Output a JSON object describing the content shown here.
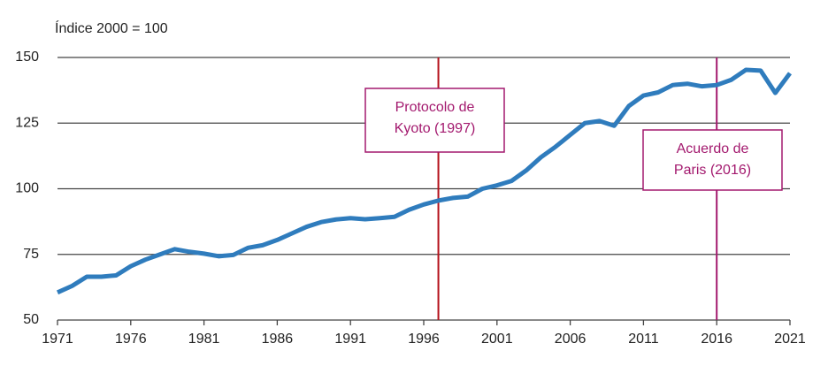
{
  "chart_data": {
    "type": "line",
    "y_label": "Índice 2000 = 100",
    "x": [
      1971,
      1972,
      1973,
      1974,
      1975,
      1976,
      1977,
      1978,
      1979,
      1980,
      1981,
      1982,
      1983,
      1984,
      1985,
      1986,
      1987,
      1988,
      1989,
      1990,
      1991,
      1992,
      1993,
      1994,
      1995,
      1996,
      1997,
      1998,
      1999,
      2000,
      2001,
      2002,
      2003,
      2004,
      2005,
      2006,
      2007,
      2008,
      2009,
      2010,
      2011,
      2012,
      2013,
      2014,
      2015,
      2016,
      2017,
      2018,
      2019,
      2020,
      2021
    ],
    "values": [
      60.5,
      63,
      66.5,
      66.5,
      67,
      70.5,
      73,
      75,
      77,
      76,
      75.3,
      74.3,
      74.8,
      77.5,
      78.5,
      80.5,
      83,
      85.5,
      87.3,
      88.3,
      88.8,
      88.4,
      88.8,
      89.3,
      92,
      94,
      95.5,
      96.5,
      97,
      100,
      101.3,
      103,
      107,
      112,
      116,
      120.5,
      125,
      125.8,
      124,
      131.5,
      135.5,
      136.7,
      139.5,
      140,
      139,
      139.5,
      141.5,
      145.3,
      145,
      136.5,
      144
    ],
    "color": "#2f7cbd",
    "xlim": [
      1971,
      2021
    ],
    "xticks": [
      1971,
      1976,
      1981,
      1986,
      1991,
      1996,
      2001,
      2006,
      2011,
      2016,
      2021
    ],
    "ylim": [
      50,
      150
    ],
    "yticks": [
      50,
      75,
      100,
      125,
      150
    ],
    "grid": true,
    "annotations": [
      {
        "x": 1997,
        "color": "#b5121b",
        "text_color": "#a3196e",
        "lines": [
          "Protocolo de",
          "Kyoto (1997)"
        ]
      },
      {
        "x": 2016,
        "color": "#a3196e",
        "text_color": "#a3196e",
        "lines": [
          "Acuerdo de",
          "Paris (2016)"
        ]
      }
    ]
  }
}
